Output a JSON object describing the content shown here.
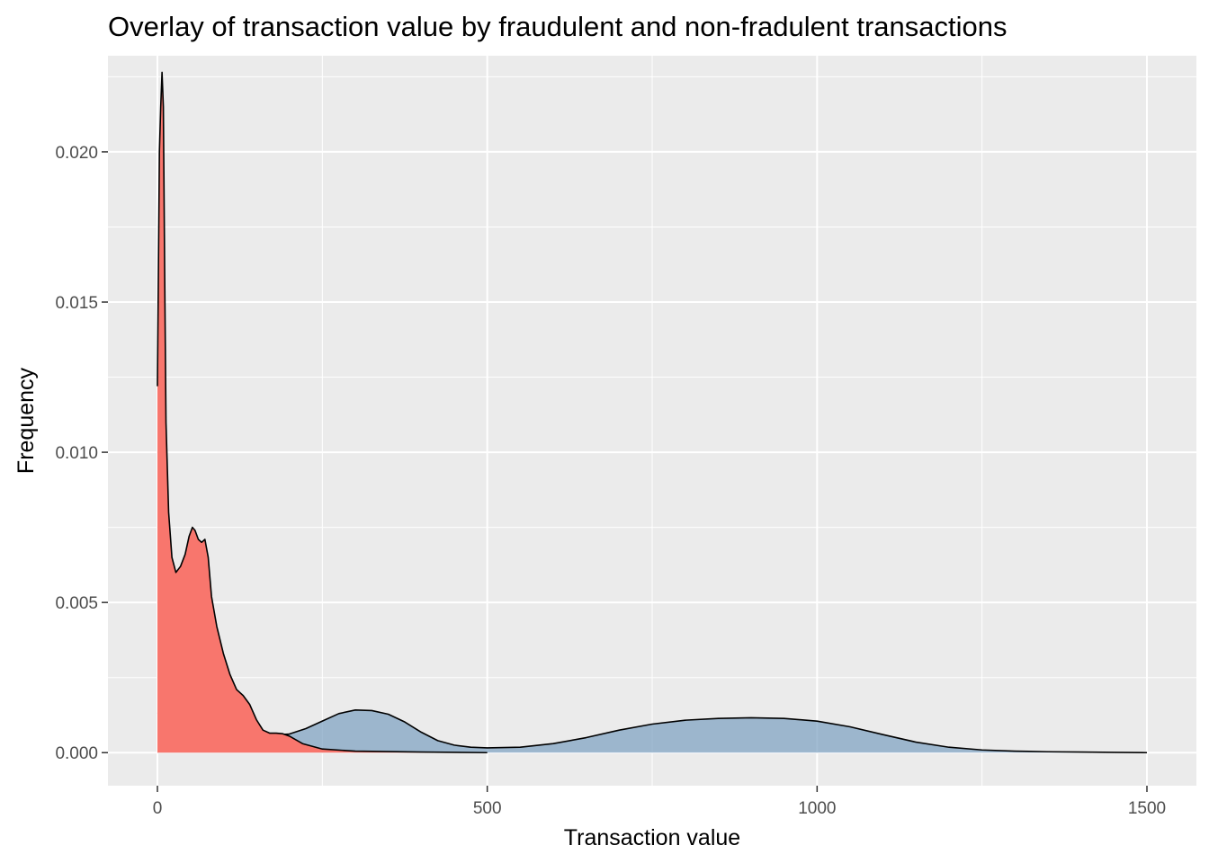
{
  "chart_data": {
    "type": "area",
    "title": "Overlay of transaction value by fraudulent and non-fradulent transactions",
    "xlabel": "Transaction value",
    "ylabel": "Frequency",
    "xlim": [
      -75,
      1575
    ],
    "ylim": [
      -0.0011,
      0.0232
    ],
    "x_ticks": [
      0,
      500,
      1000,
      1500
    ],
    "y_ticks": [
      0.0,
      0.005,
      0.01,
      0.015,
      0.02
    ],
    "x_tick_labels": [
      "0",
      "500",
      "1000",
      "1500"
    ],
    "y_tick_labels": [
      "0.000",
      "0.005",
      "0.010",
      "0.015",
      "0.020"
    ],
    "grid": true,
    "legend": "none",
    "colors": {
      "panel_background": "#ebebeb",
      "grid": "#ffffff",
      "series_red": "#f8766d",
      "series_blue": "#7a9fc1",
      "outline": "#000000"
    },
    "series": [
      {
        "color": "#7a9fc1",
        "opacity": 0.7,
        "x": [
          0,
          25,
          50,
          75,
          100,
          125,
          150,
          175,
          200,
          225,
          250,
          275,
          300,
          325,
          350,
          375,
          400,
          425,
          450,
          475,
          500,
          550,
          600,
          650,
          700,
          750,
          800,
          850,
          900,
          950,
          1000,
          1050,
          1100,
          1150,
          1200,
          1250,
          1300,
          1350,
          1400,
          1450,
          1500
        ],
        "y": [
          0.0013,
          0.00135,
          0.0013,
          0.00115,
          0.00095,
          0.00075,
          0.0006,
          0.00058,
          0.00062,
          0.0008,
          0.00105,
          0.0013,
          0.00142,
          0.0014,
          0.00128,
          0.00102,
          0.00068,
          0.0004,
          0.00025,
          0.00018,
          0.00016,
          0.00018,
          0.0003,
          0.0005,
          0.00075,
          0.00095,
          0.00108,
          0.00114,
          0.00116,
          0.00114,
          0.00105,
          0.00086,
          0.0006,
          0.00035,
          0.00018,
          9e-05,
          5e-05,
          3e-05,
          2e-05,
          1e-05,
          0.0
        ]
      },
      {
        "color": "#f8766d",
        "opacity": 1.0,
        "x": [
          0,
          3,
          5,
          7,
          9,
          11,
          13,
          17,
          22,
          28,
          35,
          42,
          48,
          53,
          57,
          62,
          67,
          72,
          77,
          82,
          90,
          100,
          110,
          120,
          130,
          140,
          150,
          160,
          170,
          180,
          190,
          200,
          220,
          250,
          300,
          400,
          500
        ],
        "y": [
          0.0122,
          0.02,
          0.0215,
          0.02265,
          0.0215,
          0.016,
          0.011,
          0.008,
          0.0065,
          0.006,
          0.0062,
          0.0066,
          0.0072,
          0.0075,
          0.0074,
          0.0071,
          0.007,
          0.0071,
          0.0065,
          0.0052,
          0.0042,
          0.0033,
          0.0026,
          0.0021,
          0.0019,
          0.0016,
          0.0011,
          0.00075,
          0.00065,
          0.00065,
          0.00063,
          0.00055,
          0.0003,
          0.00012,
          5e-05,
          2e-05,
          0.0
        ]
      }
    ]
  }
}
